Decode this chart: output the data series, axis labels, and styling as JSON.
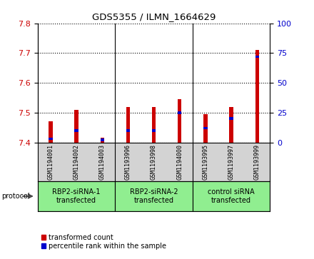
{
  "title": "GDS5355 / ILMN_1664629",
  "samples": [
    "GSM1194001",
    "GSM1194002",
    "GSM1194003",
    "GSM1193996",
    "GSM1193998",
    "GSM1194000",
    "GSM1193995",
    "GSM1193997",
    "GSM1193999"
  ],
  "transformed_count": [
    7.47,
    7.51,
    7.415,
    7.52,
    7.52,
    7.545,
    7.495,
    7.52,
    7.71
  ],
  "percentile_rank": [
    3,
    10,
    2,
    10,
    10,
    25,
    12,
    20,
    72
  ],
  "ylim_left": [
    7.4,
    7.8
  ],
  "ylim_right": [
    0,
    100
  ],
  "yticks_left": [
    7.4,
    7.5,
    7.6,
    7.7,
    7.8
  ],
  "yticks_right": [
    0,
    25,
    50,
    75,
    100
  ],
  "bar_color_red": "#cc0000",
  "bar_color_blue": "#0000cc",
  "plot_bg": "#ffffff",
  "sample_area_bg": "#d3d3d3",
  "group_colors": [
    "#90ee90",
    "#90ee90",
    "#90ee90"
  ],
  "groups": [
    {
      "label": "RBP2-siRNA-1\ntransfected",
      "start": 0,
      "end": 3
    },
    {
      "label": "RBP2-siRNA-2\ntransfected",
      "start": 3,
      "end": 6
    },
    {
      "label": "control siRNA\ntransfected",
      "start": 6,
      "end": 9
    }
  ],
  "legend_red_label": "transformed count",
  "legend_blue_label": "percentile rank within the sample",
  "protocol_label": "protocol",
  "bar_width": 0.15
}
